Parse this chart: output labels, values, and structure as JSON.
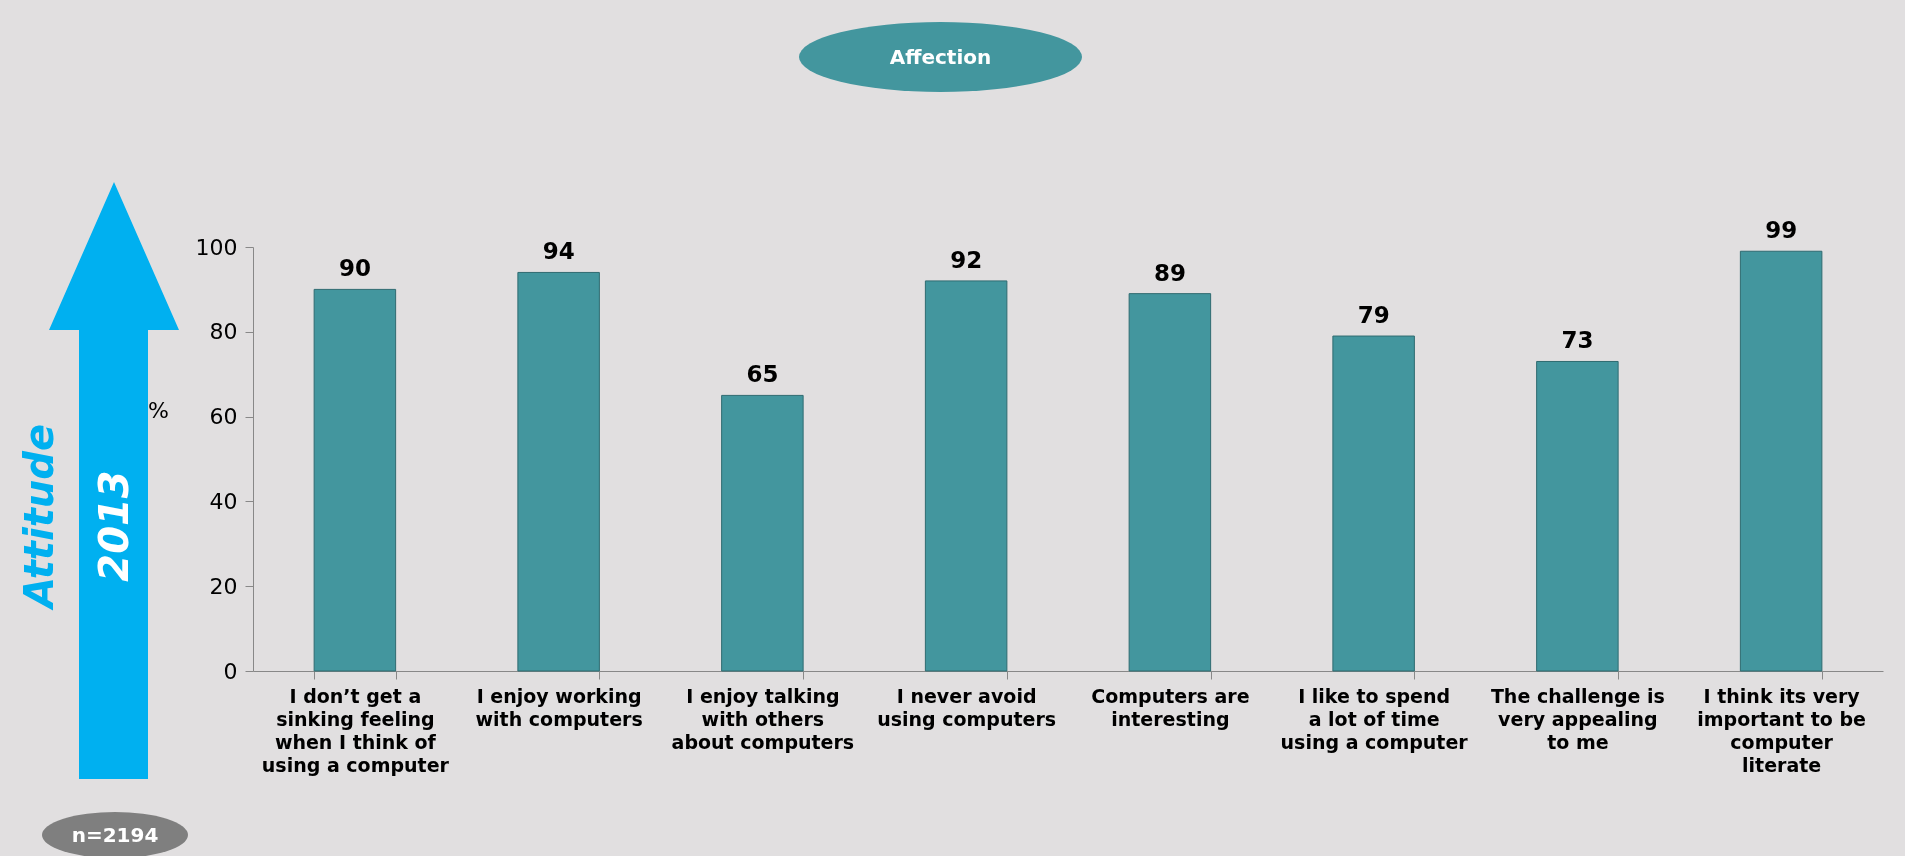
{
  "chart_data": {
    "type": "bar",
    "title": "Affection",
    "ylabel": "%",
    "categories": [
      "I don’t get a sinking feeling when I think of using a computer",
      "I enjoy working with computers",
      "I enjoy talking with others about computers",
      "I never avoid using computers",
      "Computers are interesting",
      "I like to spend a lot of time using a computer",
      "The challenge is very appealing to me",
      "I think its very important to be computer literate"
    ],
    "values": [
      90,
      94,
      65,
      92,
      89,
      79,
      73,
      99
    ],
    "color": "#43969e",
    "ylim": [
      0,
      100
    ],
    "yticks": [
      0,
      20,
      40,
      60,
      80,
      100
    ],
    "data_labels": true,
    "annotations": [
      "Attitude",
      "2013",
      "n=2194"
    ]
  }
}
